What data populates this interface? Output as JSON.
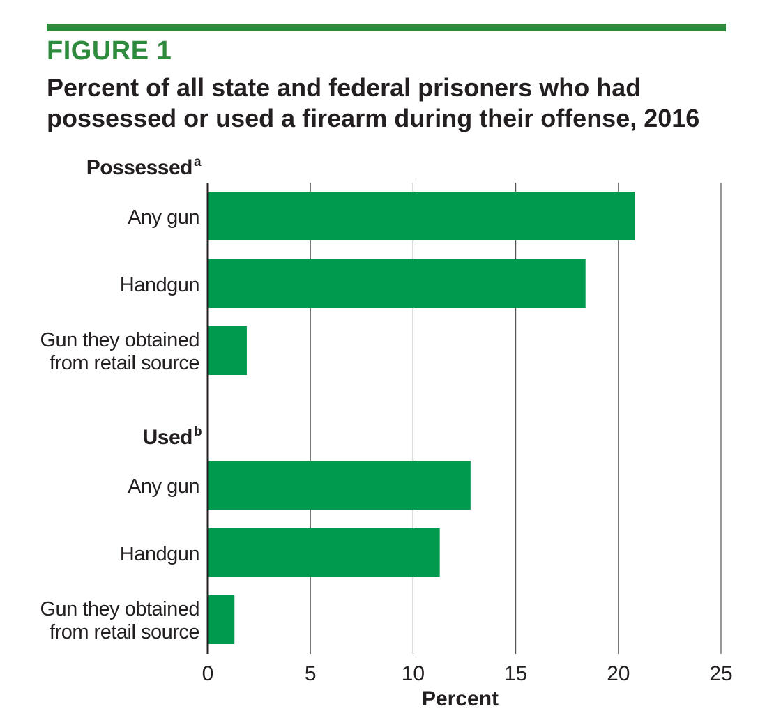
{
  "figure_label": "FIGURE 1",
  "title_line1": "Percent of all state and federal prisoners who had",
  "title_line2": "possessed or used a firearm during their offense, 2016",
  "colors": {
    "bar": "#009a4e",
    "accent": "#2e8b3e",
    "grid": "#555555",
    "text": "#231f20"
  },
  "chart_data": {
    "type": "bar",
    "orientation": "horizontal",
    "xlabel": "Percent",
    "xlim": [
      0,
      25
    ],
    "xticks": [
      0,
      5,
      10,
      15,
      20,
      25
    ],
    "grid": true,
    "groups": [
      {
        "name": "Possessed",
        "superscript": "a",
        "bars": [
          {
            "label": [
              "Any gun"
            ],
            "value": 20.8
          },
          {
            "label": [
              "Handgun"
            ],
            "value": 18.4
          },
          {
            "label": [
              "Gun they obtained",
              "from retail source"
            ],
            "value": 1.9
          }
        ]
      },
      {
        "name": "Used",
        "superscript": "b",
        "bars": [
          {
            "label": [
              "Any gun"
            ],
            "value": 12.8
          },
          {
            "label": [
              "Handgun"
            ],
            "value": 11.3
          },
          {
            "label": [
              "Gun they obtained",
              "from retail source"
            ],
            "value": 1.3
          }
        ]
      }
    ]
  }
}
